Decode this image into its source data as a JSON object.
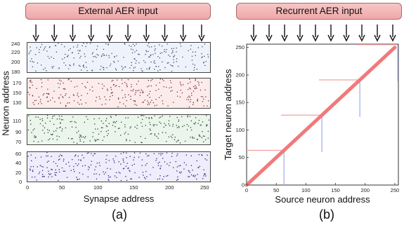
{
  "panel_a": {
    "banner": "External AER input",
    "arrow_count": 10,
    "y_axis_label": "Neuron address",
    "x_axis_label": "Synapse address",
    "x_ticks": [
      "0",
      "50",
      "100",
      "150",
      "200",
      "250"
    ],
    "rasters": [
      {
        "y_ticks": [
          "240",
          "220",
          "200",
          "180"
        ],
        "fill": "#eef3fb",
        "dot_color": "#3a4a6a"
      },
      {
        "y_ticks": [
          "170",
          "150",
          "130"
        ],
        "fill": "#fbeceb",
        "dot_color": "#7a2c2c"
      },
      {
        "y_ticks": [
          "110",
          "90",
          "70"
        ],
        "fill": "#ebf5ec",
        "dot_color": "#1f4a2a"
      },
      {
        "y_ticks": [
          "60",
          "40",
          "20",
          "0"
        ],
        "fill": "#efecfb",
        "dot_color": "#2a2680"
      }
    ],
    "letter": "(a)"
  },
  "panel_b": {
    "banner": "Recurrent AER input",
    "arrow_count": 10,
    "y_axis_label": "Target neuron address",
    "x_axis_label": "Source neuron address",
    "x_ticks": [
      "0",
      "50",
      "100",
      "150",
      "200",
      "250"
    ],
    "y_ticks": [
      "0",
      "50",
      "100",
      "150",
      "200",
      "250"
    ],
    "blocks": [
      64,
      128,
      192,
      256
    ],
    "diagonal_color": "#f07a7a",
    "h_line_color": "#f4a0a0",
    "v_line_color": "#a0a8f0",
    "letter": "(b)"
  }
}
